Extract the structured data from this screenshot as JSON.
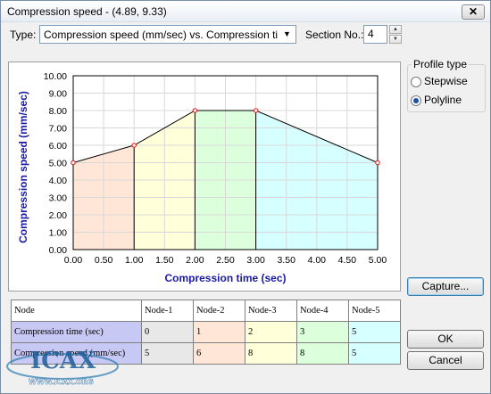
{
  "window": {
    "title": "Compression speed - (4.89, 9.33)",
    "close_glyph": "✕"
  },
  "controls": {
    "type_label": "Type:",
    "type_value": "Compression speed (mm/sec) vs. Compression time (",
    "section_label": "Section No.:",
    "section_value": "4"
  },
  "profile": {
    "title": "Profile type",
    "options": [
      {
        "label": "Stepwise",
        "checked": false
      },
      {
        "label": "Polyline",
        "checked": true
      }
    ]
  },
  "buttons": {
    "capture": "Capture...",
    "ok": "OK",
    "cancel": "Cancel"
  },
  "table": {
    "headers": [
      "Node",
      "Node-1",
      "Node-2",
      "Node-3",
      "Node-4",
      "Node-5"
    ],
    "rows": [
      {
        "label": "Compression time (sec)",
        "values": [
          "0",
          "1",
          "2",
          "3",
          "5"
        ]
      },
      {
        "label": "Compression speed (mm/sec)",
        "values": [
          "5",
          "6",
          "8",
          "8",
          "5"
        ]
      }
    ]
  },
  "watermark": {
    "logo": "ICAX",
    "url": "WWW.ICAX.ORG"
  },
  "chart_data": {
    "type": "line",
    "xlabel": "Compression time (sec)",
    "ylabel": "Compression speed (mm/sec)",
    "x": [
      0,
      1,
      2,
      3,
      5
    ],
    "y": [
      5,
      6,
      8,
      8,
      5
    ],
    "xlim": [
      0,
      5
    ],
    "ylim": [
      0,
      10
    ],
    "xticks": [
      "0.00",
      "0.50",
      "1.00",
      "1.50",
      "2.00",
      "2.50",
      "3.00",
      "3.50",
      "4.00",
      "4.50",
      "5.00"
    ],
    "yticks": [
      "0.00",
      "1.00",
      "2.00",
      "3.00",
      "4.00",
      "5.00",
      "6.00",
      "7.00",
      "8.00",
      "9.00",
      "10.00"
    ],
    "grid": true,
    "segment_colors": [
      "#ffe6d6",
      "#ffffd9",
      "#dcffdc",
      "#d6ffff"
    ],
    "label_color": "#1a1aa6",
    "line_color": "#000000",
    "marker_color": "#e03030"
  }
}
